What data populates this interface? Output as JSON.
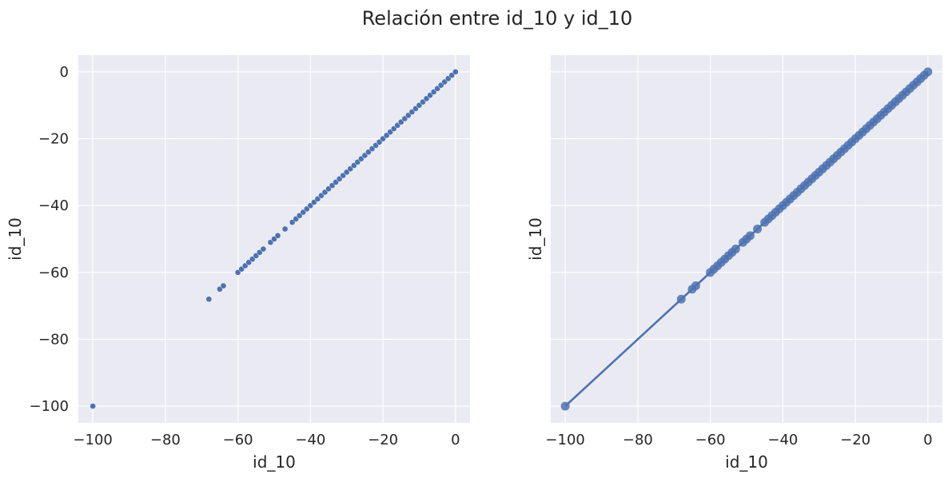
{
  "figure": {
    "title": "Relación entre id_10 y id_10"
  },
  "colors": {
    "background": "#ffffff",
    "panel": "#eaeaf2",
    "grid": "#ffffff",
    "marker": "#4c72b0",
    "text": "#262626"
  },
  "chart_data": [
    {
      "type": "scatter",
      "title": "",
      "xlabel": "id_10",
      "ylabel": "id_10",
      "xlim": [
        -104,
        4
      ],
      "ylim": [
        -105,
        5
      ],
      "xticks": [
        -100,
        -80,
        -60,
        -40,
        -20,
        0
      ],
      "yticks": [
        -100,
        -80,
        -60,
        -40,
        -20,
        0
      ],
      "xtick_labels": [
        "−100",
        "−80",
        "−60",
        "−40",
        "−20",
        "0"
      ],
      "ytick_labels": [
        "−100",
        "−80",
        "−60",
        "−40",
        "−20",
        "0"
      ],
      "grid": true,
      "points": {
        "x": [
          -100,
          -68,
          -65,
          -64,
          -60,
          -59,
          -58,
          -57,
          -56,
          -55,
          -54,
          -53,
          -51,
          -50,
          -49,
          -47,
          -45,
          -44,
          -43,
          -42,
          -41,
          -40,
          -39,
          -38,
          -37,
          -36,
          -35,
          -34,
          -33,
          -32,
          -31,
          -30,
          -29,
          -28,
          -27,
          -26,
          -25,
          -24,
          -23,
          -22,
          -21,
          -20,
          -19,
          -18,
          -17,
          -16,
          -15,
          -14,
          -13,
          -12,
          -11,
          -10,
          -9,
          -8,
          -7,
          -6,
          -5,
          -4,
          -3,
          -2,
          -1,
          0
        ],
        "y": [
          -100,
          -68,
          -65,
          -64,
          -60,
          -59,
          -58,
          -57,
          -56,
          -55,
          -54,
          -53,
          -51,
          -50,
          -49,
          -47,
          -45,
          -44,
          -43,
          -42,
          -41,
          -40,
          -39,
          -38,
          -37,
          -36,
          -35,
          -34,
          -33,
          -32,
          -31,
          -30,
          -29,
          -28,
          -27,
          -26,
          -25,
          -24,
          -23,
          -22,
          -21,
          -20,
          -19,
          -18,
          -17,
          -16,
          -15,
          -14,
          -13,
          -12,
          -11,
          -10,
          -9,
          -8,
          -7,
          -6,
          -5,
          -4,
          -3,
          -2,
          -1,
          0
        ]
      }
    },
    {
      "type": "scatter",
      "title": "",
      "xlabel": "id_10",
      "ylabel": "id_10",
      "xlim": [
        -104,
        4
      ],
      "ylim": [
        -105,
        5
      ],
      "xticks": [
        -100,
        -80,
        -60,
        -40,
        -20,
        0
      ],
      "xtick_labels": [
        "−100",
        "−80",
        "−60",
        "−40",
        "−20",
        "0"
      ],
      "yticks": [
        -100,
        -80,
        -60,
        -40,
        -20,
        0
      ],
      "show_ytick_labels": false,
      "grid": true,
      "points": {
        "x": [
          -100,
          -68,
          -65,
          -64,
          -60,
          -59,
          -58,
          -57,
          -56,
          -55,
          -54,
          -53,
          -51,
          -50,
          -49,
          -47,
          -45,
          -44,
          -43,
          -42,
          -41,
          -40,
          -39,
          -38,
          -37,
          -36,
          -35,
          -34,
          -33,
          -32,
          -31,
          -30,
          -29,
          -28,
          -27,
          -26,
          -25,
          -24,
          -23,
          -22,
          -21,
          -20,
          -19,
          -18,
          -17,
          -16,
          -15,
          -14,
          -13,
          -12,
          -11,
          -10,
          -9,
          -8,
          -7,
          -6,
          -5,
          -4,
          -3,
          -2,
          -1,
          0
        ],
        "y": [
          -100,
          -68,
          -65,
          -64,
          -60,
          -59,
          -58,
          -57,
          -56,
          -55,
          -54,
          -53,
          -51,
          -50,
          -49,
          -47,
          -45,
          -44,
          -43,
          -42,
          -41,
          -40,
          -39,
          -38,
          -37,
          -36,
          -35,
          -34,
          -33,
          -32,
          -31,
          -30,
          -29,
          -28,
          -27,
          -26,
          -25,
          -24,
          -23,
          -22,
          -21,
          -20,
          -19,
          -18,
          -17,
          -16,
          -15,
          -14,
          -13,
          -12,
          -11,
          -10,
          -9,
          -8,
          -7,
          -6,
          -5,
          -4,
          -3,
          -2,
          -1,
          0
        ]
      },
      "regression_line": {
        "x": [
          -100,
          0
        ],
        "y": [
          -100,
          0
        ]
      }
    }
  ]
}
